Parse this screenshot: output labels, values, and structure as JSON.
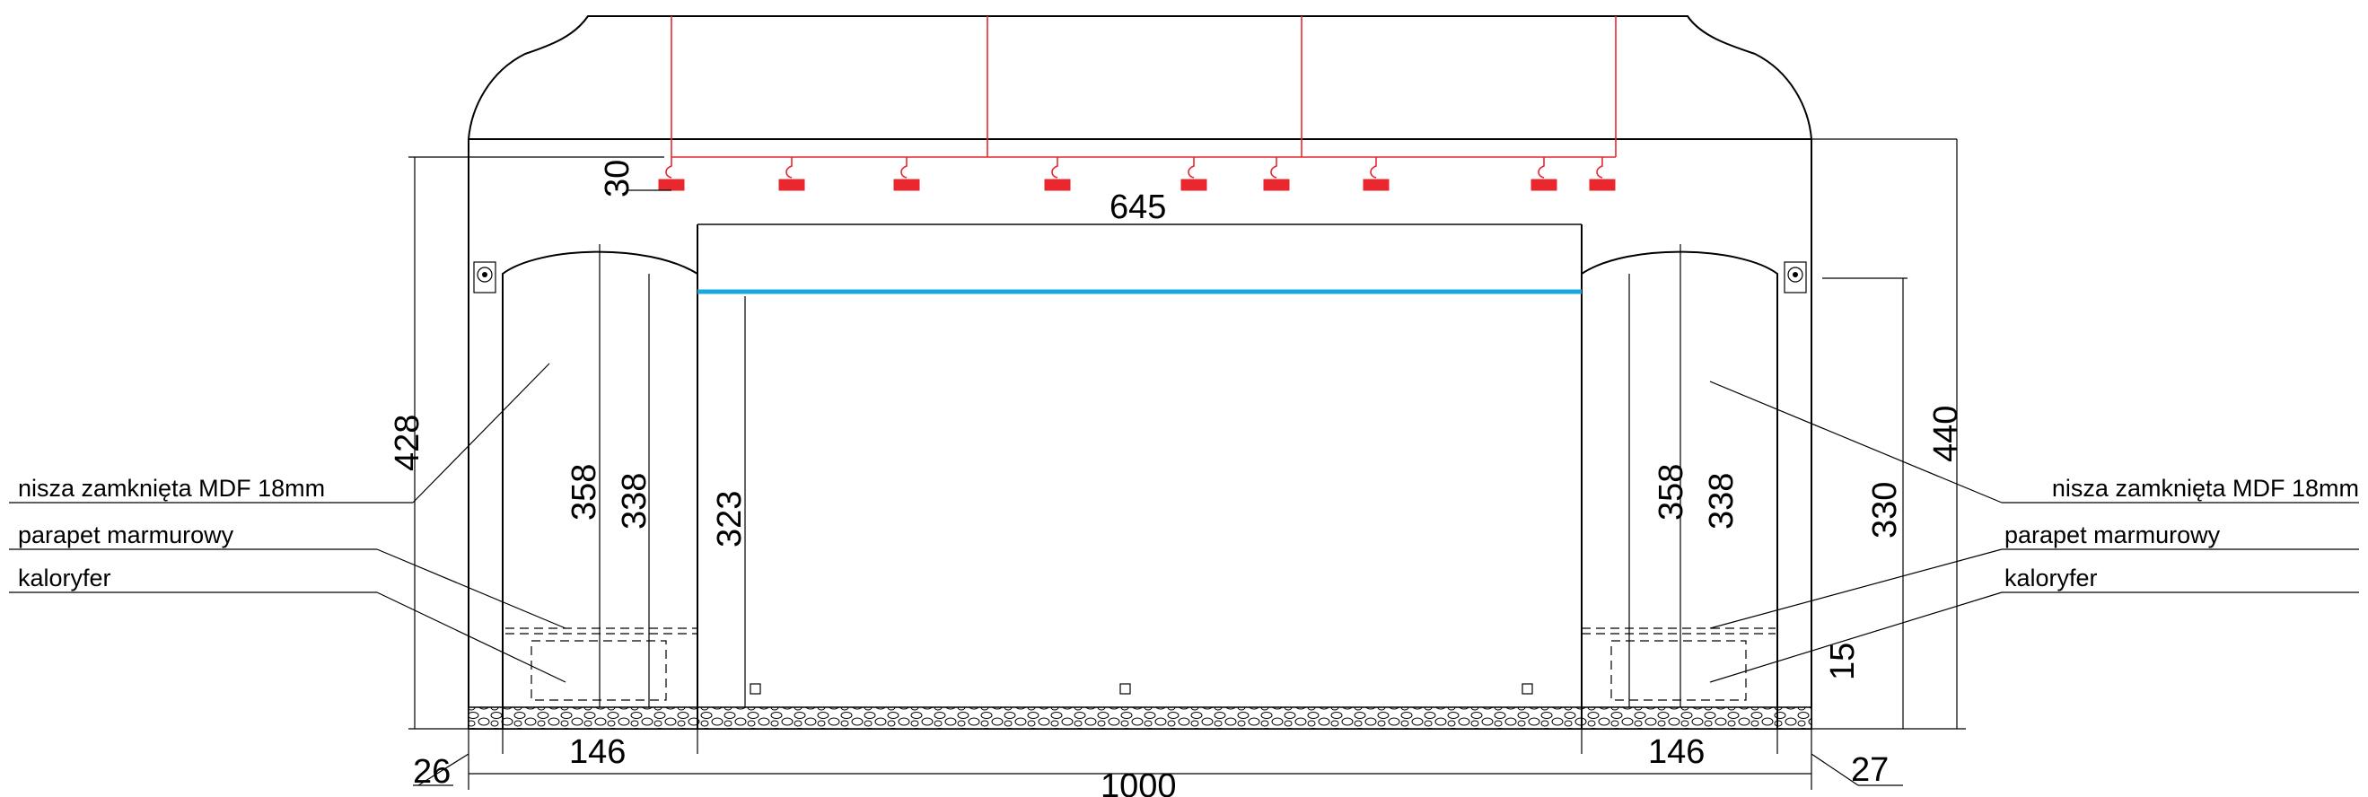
{
  "dimensions": {
    "ceiling_drop": "30",
    "opening_width": "645",
    "wall_height_left": "428",
    "niche_height_left": "358",
    "niche_inner_height_left": "338",
    "opening_height": "323",
    "niche_height_right": "358",
    "niche_inner_height_right": "338",
    "right_inner_height": "330",
    "wall_height_right": "440",
    "sill_height": "15",
    "niche_width_left": "146",
    "niche_width_right": "146",
    "wall_thickness_left": "26",
    "wall_thickness_right": "27",
    "total_width": "1000"
  },
  "labels_left": [
    "nisza zamknięta MDF 18mm",
    "parapet marmurowy",
    "kaloryfer"
  ],
  "labels_right": [
    "nisza zamknięta MDF 18mm",
    "parapet marmurowy",
    "kaloryfer"
  ],
  "colors": {
    "lines": "#000000",
    "track_lights": "#e8272e",
    "led_strip": "#1aa7e0"
  }
}
